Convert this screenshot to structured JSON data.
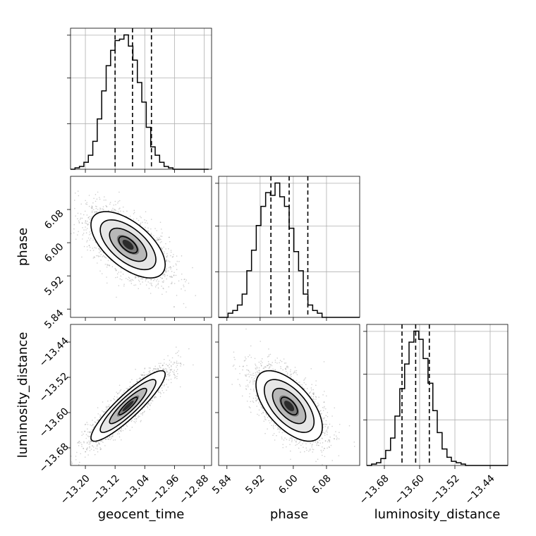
{
  "chart_data": {
    "type": "corner",
    "title": "",
    "parameters": [
      "geocent_time",
      "phase",
      "luminosity_distance"
    ],
    "axes": {
      "geocent_time": {
        "label": "geocent_time",
        "range": [
          -13.24,
          -12.86
        ],
        "ticks": [
          -13.2,
          -13.12,
          -13.04,
          -12.96,
          -12.88
        ],
        "tick_labels": [
          "−13.20",
          "−13.12",
          "−13.04",
          "−12.96",
          "−12.88"
        ]
      },
      "phase": {
        "label": "phase",
        "range": [
          5.82,
          6.16
        ],
        "ticks": [
          5.84,
          5.92,
          6.0,
          6.08
        ],
        "tick_labels": [
          "5.84",
          "5.92",
          "6.00",
          "6.08"
        ]
      },
      "luminosity_distance": {
        "label": "luminosity_distance",
        "range": [
          -13.72,
          -13.4
        ],
        "ticks": [
          -13.68,
          -13.6,
          -13.52,
          -13.44
        ],
        "tick_labels": [
          "−13.68",
          "−13.60",
          "−13.52",
          "−13.44"
        ]
      }
    },
    "grid": true,
    "histograms": {
      "geocent_time": {
        "bins": [
          -13.24,
          -13.228,
          -13.216,
          -13.204,
          -13.192,
          -13.18,
          -13.168,
          -13.156,
          -13.144,
          -13.132,
          -13.12,
          -13.108,
          -13.096,
          -13.084,
          -13.072,
          -13.06,
          -13.048,
          -13.036,
          -13.024,
          -13.012,
          -13.0,
          -12.988,
          -12.976,
          -12.964,
          -12.952,
          -12.94,
          -12.928,
          -12.916,
          -12.904,
          -12.892,
          -12.88,
          -12.868
        ],
        "counts": [
          0,
          1,
          2,
          5,
          10,
          20,
          36,
          56,
          74,
          85,
          92,
          93,
          96,
          88,
          78,
          62,
          48,
          30,
          16,
          10,
          5,
          2,
          1,
          0,
          0,
          0,
          0,
          0,
          0,
          0,
          0
        ],
        "quantiles": [
          -13.12,
          -13.073,
          -13.022
        ]
      },
      "phase": {
        "bins": [
          5.82,
          5.8313,
          5.8427,
          5.854,
          5.8653,
          5.8767,
          5.888,
          5.8993,
          5.9107,
          5.922,
          5.9333,
          5.9447,
          5.956,
          5.9673,
          5.9787,
          5.99,
          6.0013,
          6.0127,
          6.024,
          6.0353,
          6.0467,
          6.058,
          6.0693,
          6.0807,
          6.092,
          6.1033,
          6.1147,
          6.126,
          6.1373,
          6.1487,
          6.16
        ],
        "counts": [
          0,
          0,
          3,
          5,
          9,
          17,
          34,
          49,
          67,
          81,
          91,
          89,
          98,
          88,
          81,
          65,
          48,
          34,
          17,
          9,
          5,
          3,
          0,
          0,
          0,
          0,
          0,
          0,
          0,
          0
        ],
        "quantiles": [
          5.946,
          5.99,
          6.035
        ]
      },
      "luminosity_distance": {
        "bins": [
          -13.72,
          -13.709,
          -13.698,
          -13.688,
          -13.677,
          -13.666,
          -13.656,
          -13.645,
          -13.634,
          -13.624,
          -13.613,
          -13.602,
          -13.592,
          -13.581,
          -13.57,
          -13.56,
          -13.549,
          -13.538,
          -13.528,
          -13.517,
          -13.506,
          -13.496,
          -13.485,
          -13.474,
          -13.464,
          -13.453,
          -13.442,
          -13.432,
          -13.421,
          -13.41,
          -13.4
        ],
        "counts": [
          0,
          1,
          2,
          5,
          11,
          20,
          36,
          56,
          74,
          90,
          98,
          92,
          78,
          60,
          40,
          24,
          12,
          6,
          3,
          2,
          1,
          0,
          0,
          0,
          0,
          0,
          0,
          0,
          0,
          0
        ],
        "quantiles": [
          -13.64,
          -13.609,
          -13.578
        ]
      }
    },
    "joint": [
      {
        "x": "geocent_time",
        "y": "phase",
        "mean": [
          -13.085,
          5.995
        ],
        "sigma": [
          0.05,
          0.04
        ],
        "correlation": -0.6
      },
      {
        "x": "geocent_time",
        "y": "luminosity_distance",
        "mean": [
          -13.085,
          -13.585
        ],
        "sigma": [
          0.05,
          0.04
        ],
        "correlation": 0.9
      },
      {
        "x": "phase",
        "y": "luminosity_distance",
        "mean": [
          5.99,
          -13.585
        ],
        "sigma": [
          0.04,
          0.04
        ],
        "correlation": -0.6
      }
    ],
    "contour_levels_sigma": [
      0.5,
      1.0,
      1.5,
      2.0
    ]
  }
}
